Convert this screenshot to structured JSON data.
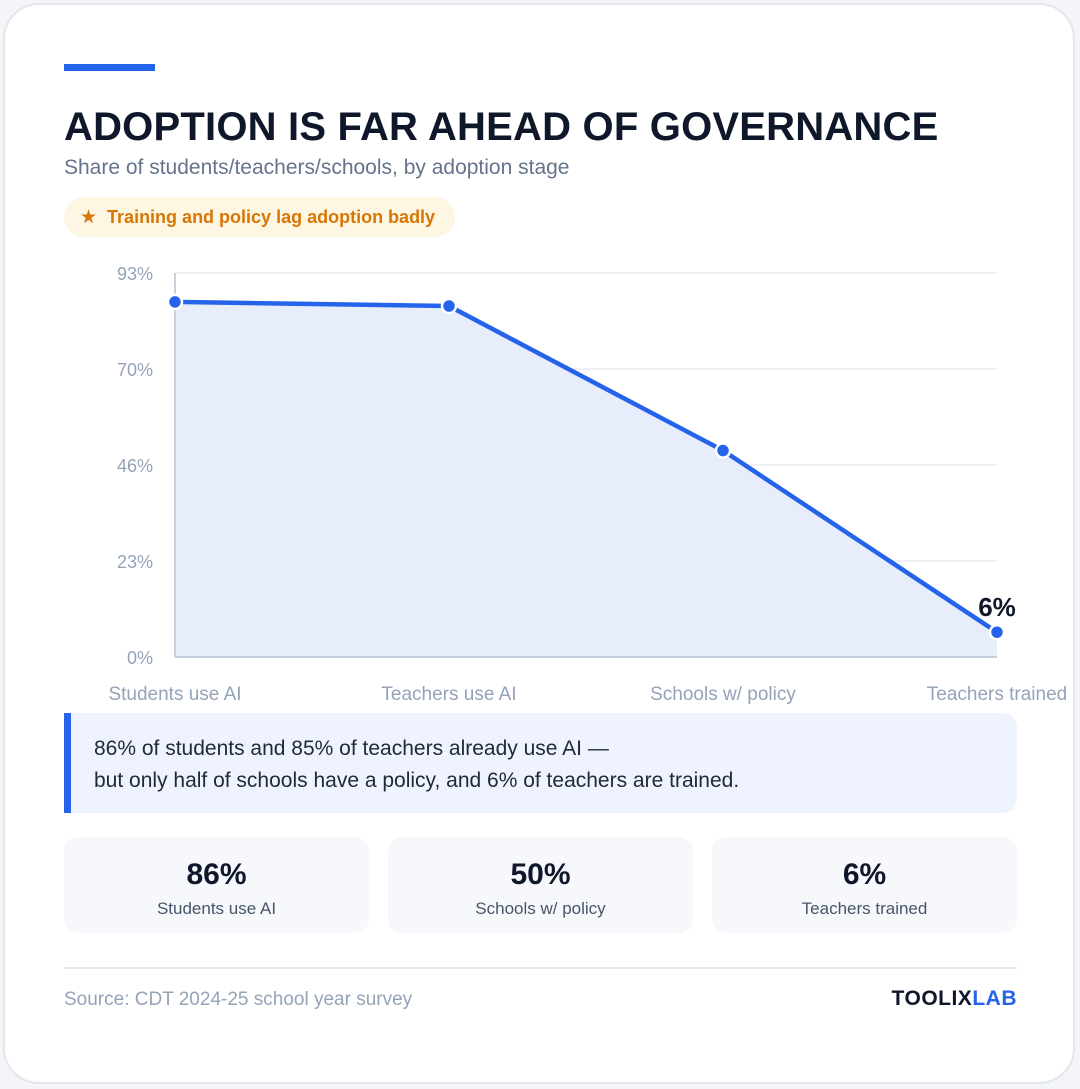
{
  "header": {
    "title": "ADOPTION IS FAR AHEAD OF GOVERNANCE",
    "subtitle": "Share of students/teachers/schools, by adoption stage",
    "badge_icon": "star-icon",
    "badge_text": "Training and policy lag adoption badly"
  },
  "chart_data": {
    "type": "area",
    "categories": [
      "Students use AI",
      "Teachers use AI",
      "Schools w/ policy",
      "Teachers trained"
    ],
    "values": [
      86,
      85,
      50,
      6
    ],
    "ylim": [
      0,
      93
    ],
    "yticks": [
      "0%",
      "23%",
      "46%",
      "70%",
      "93%"
    ],
    "ytick_values": [
      0,
      23.25,
      46.5,
      69.75,
      93
    ],
    "annotation": {
      "index": 3,
      "label": "6%"
    },
    "grid": true,
    "line_color": "#2563eb",
    "fill_color": "#e8edfb"
  },
  "callout": {
    "line1": "86% of students and 85% of teachers already use AI —",
    "line2": "but only half of schools have a policy, and 6% of teachers are trained."
  },
  "stats": [
    {
      "value": "86%",
      "label": "Students use AI"
    },
    {
      "value": "50%",
      "label": "Schools w/ policy"
    },
    {
      "value": "6%",
      "label": "Teachers trained"
    }
  ],
  "footer": {
    "source": "Source: CDT 2024-25 school year survey",
    "brand_part1": "TOOLIX",
    "brand_part2": "LAB"
  }
}
